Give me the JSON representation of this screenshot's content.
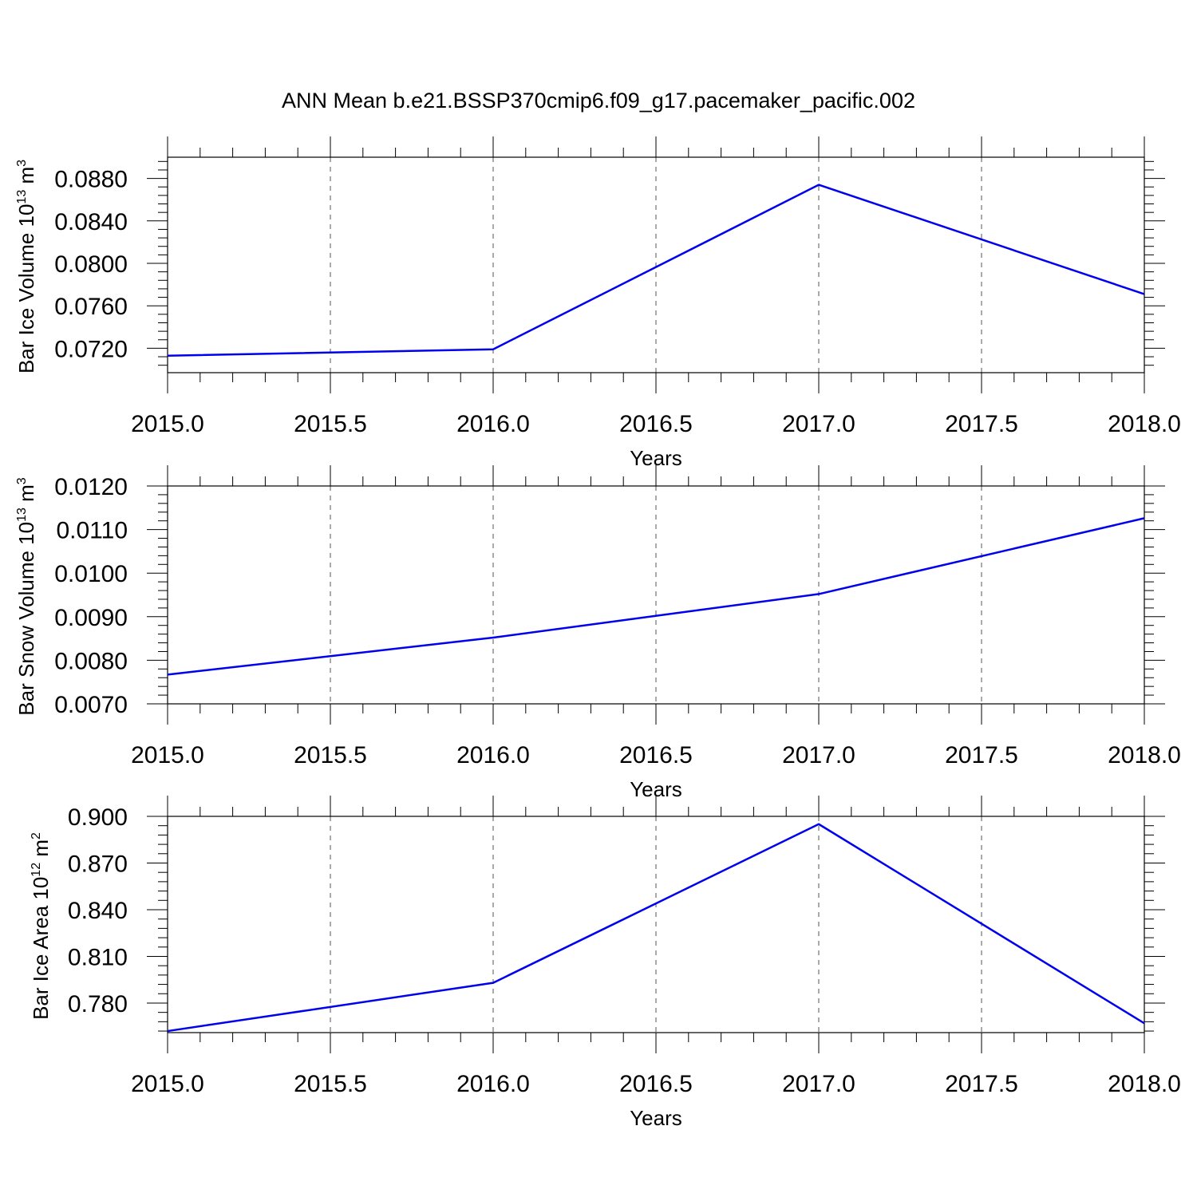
{
  "title": "ANN Mean b.e21.BSSP370cmip6.f09_g17.pacemaker_pacific.002",
  "chart_data": [
    {
      "type": "line",
      "xlabel": "Years",
      "ylabel": {
        "main": "Bar Ice Volume 10",
        "exp": "13",
        "unit": " m",
        "unit_exp": "3"
      },
      "xlim": [
        2015.0,
        2018.0
      ],
      "ylim": [
        0.0697,
        0.09
      ],
      "x_ticks": [
        "2015.0",
        "2015.5",
        "2016.0",
        "2016.5",
        "2017.0",
        "2017.5",
        "2018.0"
      ],
      "y_ticks": [
        "0.0720",
        "0.0760",
        "0.0800",
        "0.0840",
        "0.0880"
      ],
      "x": [
        2015,
        2016,
        2017,
        2018
      ],
      "values": [
        0.0713,
        0.0719,
        0.0874,
        0.0771
      ],
      "color": "#0000ee"
    },
    {
      "type": "line",
      "xlabel": "Years",
      "ylabel": {
        "main": "Bar Snow Volume 10",
        "exp": "13",
        "unit": " m",
        "unit_exp": "3"
      },
      "xlim": [
        2015.0,
        2018.0
      ],
      "ylim": [
        0.007,
        0.012
      ],
      "x_ticks": [
        "2015.0",
        "2015.5",
        "2016.0",
        "2016.5",
        "2017.0",
        "2017.5",
        "2018.0"
      ],
      "y_ticks": [
        "0.0070",
        "0.0080",
        "0.0090",
        "0.0100",
        "0.0110",
        "0.0120"
      ],
      "x": [
        2015,
        2016,
        2017,
        2018
      ],
      "values": [
        0.00767,
        0.00852,
        0.00952,
        0.01126
      ],
      "color": "#0000ee"
    },
    {
      "type": "line",
      "xlabel": "Years",
      "ylabel": {
        "main": "Bar Ice Area 10",
        "exp": "12",
        "unit": " m",
        "unit_exp": "2"
      },
      "xlim": [
        2015.0,
        2018.0
      ],
      "ylim": [
        0.761,
        0.9
      ],
      "x_ticks": [
        "2015.0",
        "2015.5",
        "2016.0",
        "2016.5",
        "2017.0",
        "2017.5",
        "2018.0"
      ],
      "y_ticks": [
        "0.780",
        "0.810",
        "0.840",
        "0.870",
        "0.900"
      ],
      "x": [
        2015,
        2016,
        2017,
        2018
      ],
      "values": [
        0.762,
        0.793,
        0.895,
        0.767
      ],
      "color": "#0000ee"
    }
  ]
}
